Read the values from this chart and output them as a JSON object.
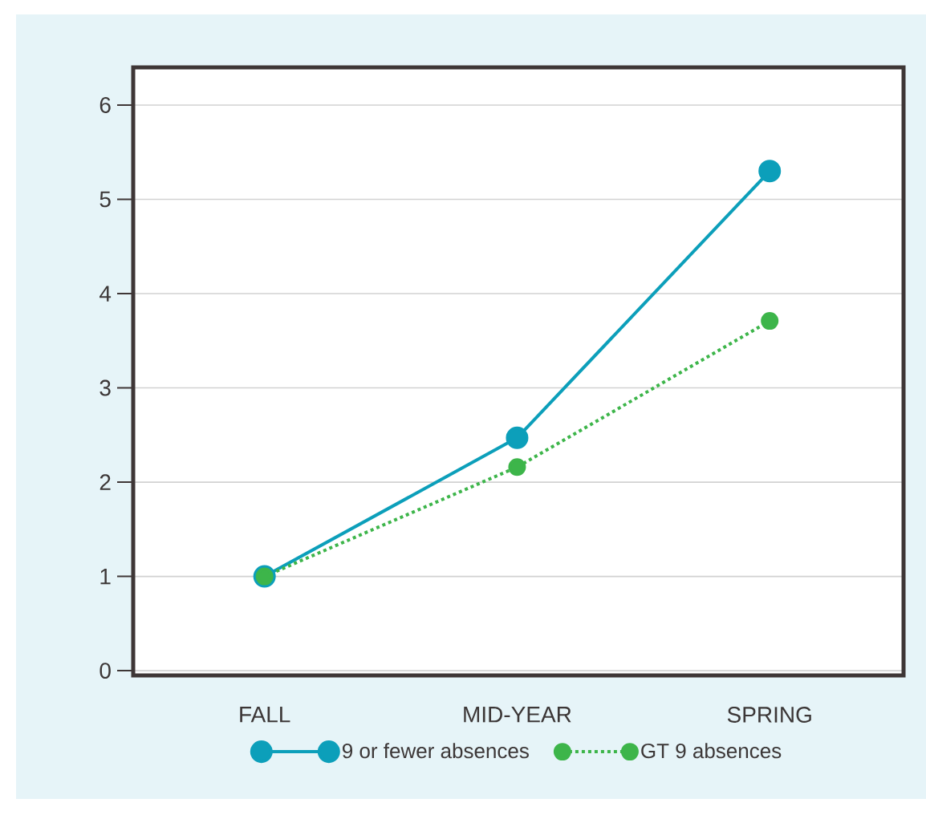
{
  "chart_data": {
    "type": "line",
    "categories": [
      "FALL",
      "MID-YEAR",
      "SPRING"
    ],
    "series": [
      {
        "name": "9 or fewer absences",
        "color": "#0c9fba",
        "values": [
          1.0,
          2.47,
          5.3
        ],
        "line_style": "solid"
      },
      {
        "name": "GT 9 absences",
        "color": "#3db54a",
        "values": [
          1.0,
          2.16,
          3.71
        ],
        "line_style": "dotted"
      }
    ],
    "ylim": [
      -0.05,
      6.4
    ],
    "yticks": [
      0,
      1,
      2,
      3,
      4,
      5,
      6
    ],
    "grid": "y",
    "legend": "bottom",
    "marker": "circle"
  }
}
